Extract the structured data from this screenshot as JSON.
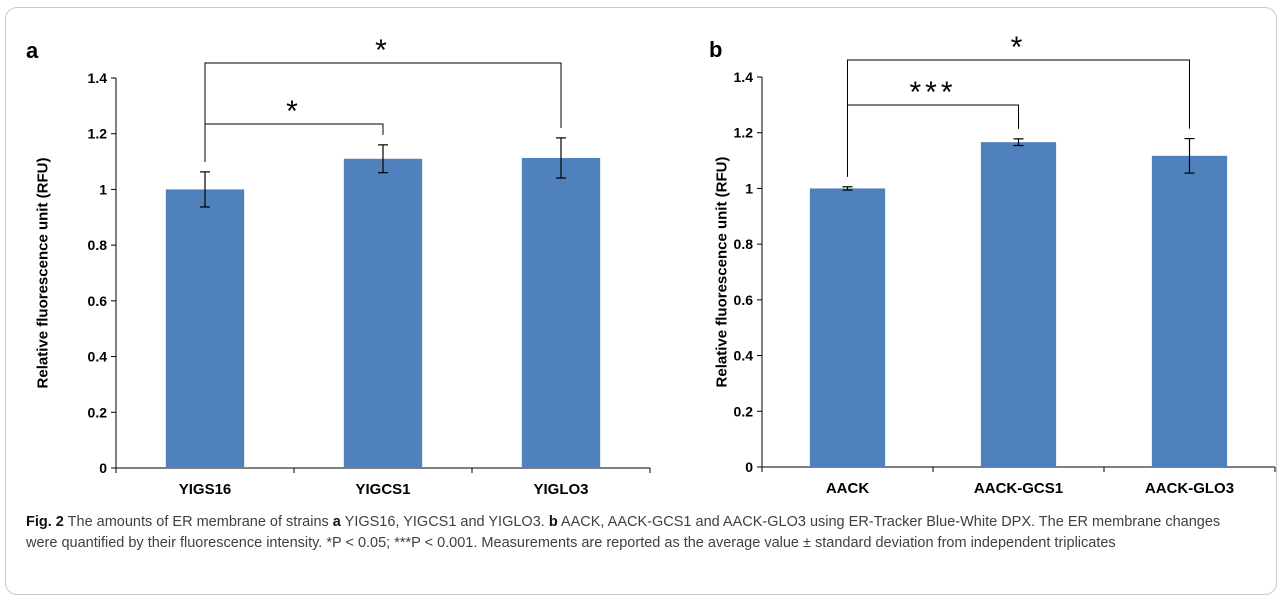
{
  "caption": {
    "fig_label": "Fig. 2",
    "t1": "  The amounts of ER membrane of strains ",
    "a": "a",
    "t2": " YIGS16, YIGCS1 and YIGLO3. ",
    "b": "b",
    "t3": " AACK, AACK-GCS1 and AACK-GLO3 using ER-Tracker Blue-White DPX. The ER membrane changes were quantified by their fluorescence intensity. *P < 0.05; ***P < 0.001. Measurements are reported as the average value ± standard deviation from independent triplicates"
  },
  "colors": {
    "bar": "#4f81bd",
    "axis": "#000000"
  },
  "chart_data": [
    {
      "panel": "a",
      "type": "bar",
      "categories": [
        "YIGS16",
        "YIGCS1",
        "YIGLO3"
      ],
      "values": [
        1.0,
        1.11,
        1.113
      ],
      "errors": [
        0.063,
        0.05,
        0.072
      ],
      "ylabel": "Relative fluorescence unit (RFU)",
      "ylim": [
        0,
        1.4
      ],
      "yticks": [
        {
          "v": 0,
          "label": "0"
        },
        {
          "v": 0.2,
          "label": "0.2"
        },
        {
          "v": 0.4,
          "label": "0.4"
        },
        {
          "v": 0.6,
          "label": "0.6"
        },
        {
          "v": 0.8,
          "label": "0.8"
        },
        {
          "v": 1,
          "label": "1"
        },
        {
          "v": 1.2,
          "label": "1.2"
        },
        {
          "v": 1.4,
          "label": "1.4"
        }
      ],
      "grid": false,
      "significance": [
        {
          "from": 0,
          "to": 1,
          "label": "*"
        },
        {
          "from": 0,
          "to": 2,
          "label": "*"
        }
      ]
    },
    {
      "panel": "b",
      "type": "bar",
      "categories": [
        "AACK",
        "AACK-GCS1",
        "AACK-GLO3"
      ],
      "values": [
        1.0,
        1.166,
        1.117
      ],
      "errors": [
        0.006,
        0.012,
        0.062
      ],
      "ylabel": "Relative fluorescence unit (RFU)",
      "ylim": [
        0,
        1.4
      ],
      "yticks": [
        {
          "v": 0,
          "label": "0"
        },
        {
          "v": 0.2,
          "label": "0.2"
        },
        {
          "v": 0.4,
          "label": "0.4"
        },
        {
          "v": 0.6,
          "label": "0.6"
        },
        {
          "v": 0.8,
          "label": "0.8"
        },
        {
          "v": 1,
          "label": "1"
        },
        {
          "v": 1.2,
          "label": "1.2"
        },
        {
          "v": 1.4,
          "label": "1.4"
        }
      ],
      "grid": false,
      "significance": [
        {
          "from": 0,
          "to": 1,
          "label": "***"
        },
        {
          "from": 0,
          "to": 2,
          "label": "*"
        }
      ]
    }
  ]
}
